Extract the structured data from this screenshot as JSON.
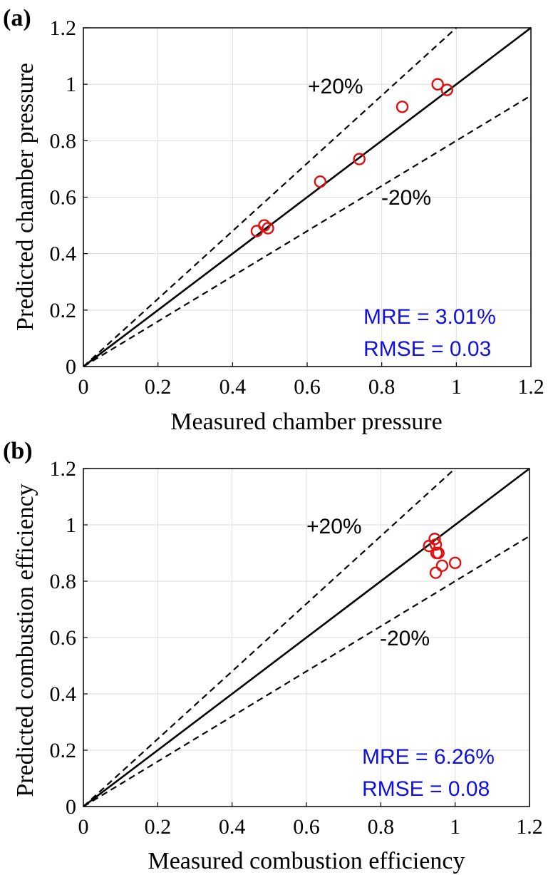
{
  "chart_data": [
    {
      "id": "a",
      "type": "scatter",
      "panel_label": "(a)",
      "xlabel": "Measured chamber pressure",
      "ylabel": "Predicted chamber pressure",
      "xlim": [
        0,
        1.2
      ],
      "ylim": [
        0,
        1.2
      ],
      "xticks": [
        "0",
        "0.2",
        "0.4",
        "0.6",
        "0.8",
        "1",
        "1.2"
      ],
      "yticks": [
        "0",
        "0.2",
        "0.4",
        "0.6",
        "0.8",
        "1",
        "1.2"
      ],
      "grid": true,
      "reference_lines": [
        {
          "label": "",
          "slope": 1.0,
          "style": "solid"
        },
        {
          "label": "+20%",
          "slope": 1.2,
          "style": "dashed"
        },
        {
          "label": "-20%",
          "slope": 0.8,
          "style": "dashed"
        }
      ],
      "points": [
        {
          "x": 0.465,
          "y": 0.48
        },
        {
          "x": 0.485,
          "y": 0.5
        },
        {
          "x": 0.495,
          "y": 0.49
        },
        {
          "x": 0.635,
          "y": 0.655
        },
        {
          "x": 0.74,
          "y": 0.735
        },
        {
          "x": 0.855,
          "y": 0.92
        },
        {
          "x": 0.95,
          "y": 1.0
        },
        {
          "x": 0.975,
          "y": 0.98
        }
      ],
      "marker": {
        "shape": "circle",
        "color": "#e01010"
      },
      "annotations": {
        "mre": "MRE = 3.01%",
        "rmse": "RMSE = 0.03"
      }
    },
    {
      "id": "b",
      "type": "scatter",
      "panel_label": "(b)",
      "xlabel": "Measured combustion efficiency",
      "ylabel": "Predicted combustion efficiency",
      "xlim": [
        0,
        1.2
      ],
      "ylim": [
        0,
        1.2
      ],
      "xticks": [
        "0",
        "0.2",
        "0.4",
        "0.6",
        "0.8",
        "1",
        "1.2"
      ],
      "yticks": [
        "0",
        "0.2",
        "0.4",
        "0.6",
        "0.8",
        "1",
        "1.2"
      ],
      "grid": true,
      "reference_lines": [
        {
          "label": "",
          "slope": 1.0,
          "style": "solid"
        },
        {
          "label": "+20%",
          "slope": 1.2,
          "style": "dashed"
        },
        {
          "label": "-20%",
          "slope": 0.8,
          "style": "dashed"
        }
      ],
      "points": [
        {
          "x": 0.93,
          "y": 0.925
        },
        {
          "x": 0.945,
          "y": 0.95
        },
        {
          "x": 0.948,
          "y": 0.93
        },
        {
          "x": 0.95,
          "y": 0.9
        },
        {
          "x": 0.955,
          "y": 0.9
        },
        {
          "x": 0.948,
          "y": 0.83
        },
        {
          "x": 0.965,
          "y": 0.855
        },
        {
          "x": 1.0,
          "y": 0.865
        }
      ],
      "marker": {
        "shape": "circle",
        "color": "#e01010"
      },
      "annotations": {
        "mre": "MRE = 6.26%",
        "rmse": "RMSE = 0.08"
      }
    }
  ]
}
